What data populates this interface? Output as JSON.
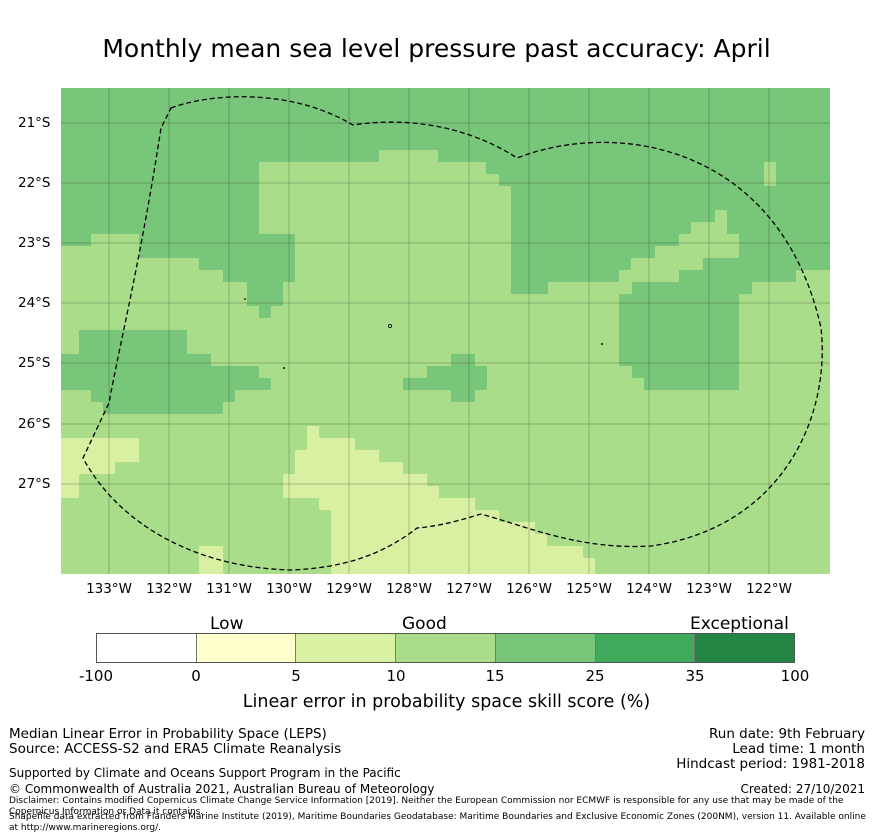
{
  "title": "Monthly mean sea level pressure past accuracy: April",
  "map": {
    "lat_labels": [
      "21°S",
      "22°S",
      "23°S",
      "24°S",
      "25°S",
      "26°S",
      "27°S"
    ],
    "lon_labels": [
      "133°W",
      "132°W",
      "131°W",
      "130°W",
      "129°W",
      "128°W",
      "127°W",
      "126°W",
      "125°W",
      "124°W",
      "123°W",
      "122°W"
    ],
    "lon_range": [
      -133.8,
      -121.0
    ],
    "lat_range": [
      -28.5,
      -20.45
    ],
    "colors": {
      "background": "#aadd8a",
      "medium": "#78c679",
      "light": "#d9f0a3",
      "grid": "#2b2b2b",
      "outline": "#000000"
    }
  },
  "legend": {
    "categories": [
      "Low",
      "Good",
      "Exceptional"
    ],
    "ticks": [
      "-100",
      "0",
      "5",
      "10",
      "15",
      "25",
      "35",
      "100"
    ],
    "colors": [
      "#ffffff",
      "#ffffcc",
      "#d9f0a3",
      "#aadd8a",
      "#78c679",
      "#41ab5d",
      "#238443"
    ],
    "label": "Linear error in probability space skill score (%)"
  },
  "footer": {
    "left1": "Median Linear Error in Probability Space (LEPS)",
    "left2": "Source: ACCESS-S2 and ERA5 Climate Reanalysis",
    "support": "Supported by Climate and Oceans Support Program in the Pacific",
    "copyright": "© Commonwealth of Australia 2021, Australian Bureau of Meteorology",
    "run_date": "Run date: 9th February",
    "lead_time": "Lead time: 1 month",
    "hindcast": "Hindcast period: 1981-2018",
    "created": "Created: 27/10/2021",
    "disclaimer": "Disclaimer: Contains modified Copernicus Climate Change Service Information [2019]. Neither the European Commission nor ECMWF is responsible for any use that may be made of the Copernicus Information or Data it contains.",
    "shapefile": "Shapefile data extracted from Flanders Marine Institute (2019), Maritime Boundaries Geodatabase: Maritime Boundaries and Exclusive Economic Zones (200NM), version 11. Available online at http://www.marineregions.org/."
  }
}
